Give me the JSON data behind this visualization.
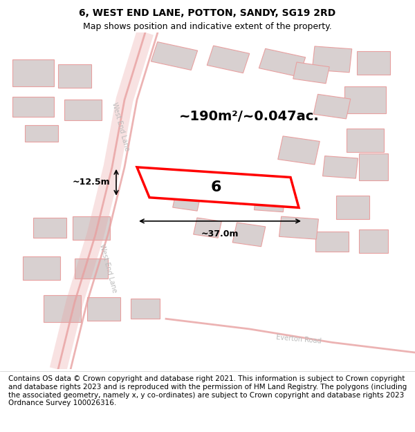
{
  "title": "6, WEST END LANE, POTTON, SANDY, SG19 2RD",
  "subtitle": "Map shows position and indicative extent of the property.",
  "footer": "Contains OS data © Crown copyright and database right 2021. This information is subject to Crown copyright and database rights 2023 and is reproduced with the permission of HM Land Registry. The polygons (including the associated geometry, namely x, y co-ordinates) are subject to Crown copyright and database rights 2023 Ordnance Survey 100026316.",
  "bg_color": "#f5f0f0",
  "map_bg": "#f7f2f2",
  "building_fill": "#d8d0d0",
  "building_edge": "#e8a0a0",
  "road_color": "#e8a0a0",
  "highlight_color": "#ff0000",
  "highlight_fill": "white",
  "dim_line_color": "#000000",
  "area_text": "~190m²/~0.047ac.",
  "width_text": "~37.0m",
  "height_text": "~12.5m",
  "label_text": "6",
  "road1_name": "West End Lane",
  "road2_name": "Everton Road",
  "title_fontsize": 10,
  "subtitle_fontsize": 9,
  "footer_fontsize": 7.5
}
